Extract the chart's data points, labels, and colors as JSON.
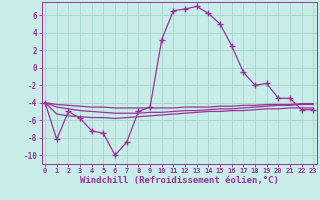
{
  "title": "",
  "xlabel": "Windchill (Refroidissement éolien,°C)",
  "background_color": "#c8ece8",
  "grid_color": "#a8d8d0",
  "line_color": "#993399",
  "x_hours": [
    0,
    1,
    2,
    3,
    4,
    5,
    6,
    7,
    8,
    9,
    10,
    11,
    12,
    13,
    14,
    15,
    16,
    17,
    18,
    19,
    20,
    21,
    22,
    23
  ],
  "windchill_data": [
    -4,
    -8.2,
    -5.0,
    -5.8,
    -7.2,
    -7.5,
    -10,
    -8.5,
    -5.0,
    -4.5,
    3.2,
    6.5,
    6.7,
    7.0,
    6.2,
    5.0,
    2.5,
    -0.5,
    -2.0,
    -1.8,
    -3.5,
    -3.5,
    -4.8,
    -4.8
  ],
  "line1_data": [
    -4.0,
    -4.2,
    -4.3,
    -4.4,
    -4.5,
    -4.5,
    -4.6,
    -4.6,
    -4.6,
    -4.6,
    -4.6,
    -4.6,
    -4.5,
    -4.5,
    -4.5,
    -4.4,
    -4.4,
    -4.3,
    -4.3,
    -4.2,
    -4.2,
    -4.2,
    -4.1,
    -4.1
  ],
  "line2_data": [
    -4.0,
    -4.5,
    -4.7,
    -4.9,
    -5.0,
    -5.1,
    -5.2,
    -5.2,
    -5.2,
    -5.1,
    -5.1,
    -5.0,
    -4.9,
    -4.9,
    -4.8,
    -4.7,
    -4.7,
    -4.6,
    -4.5,
    -4.4,
    -4.3,
    -4.3,
    -4.2,
    -4.2
  ],
  "line3_data": [
    -4.0,
    -5.3,
    -5.5,
    -5.6,
    -5.7,
    -5.7,
    -5.8,
    -5.7,
    -5.6,
    -5.5,
    -5.4,
    -5.3,
    -5.2,
    -5.1,
    -5.0,
    -5.0,
    -4.9,
    -4.9,
    -4.8,
    -4.7,
    -4.7,
    -4.6,
    -4.6,
    -4.6
  ],
  "ylim": [
    -11.0,
    7.5
  ],
  "xlim": [
    -0.3,
    23.3
  ],
  "yticks": [
    -10,
    -8,
    -6,
    -4,
    -2,
    0,
    2,
    4,
    6
  ],
  "xticks": [
    0,
    1,
    2,
    3,
    4,
    5,
    6,
    7,
    8,
    9,
    10,
    11,
    12,
    13,
    14,
    15,
    16,
    17,
    18,
    19,
    20,
    21,
    22,
    23
  ]
}
